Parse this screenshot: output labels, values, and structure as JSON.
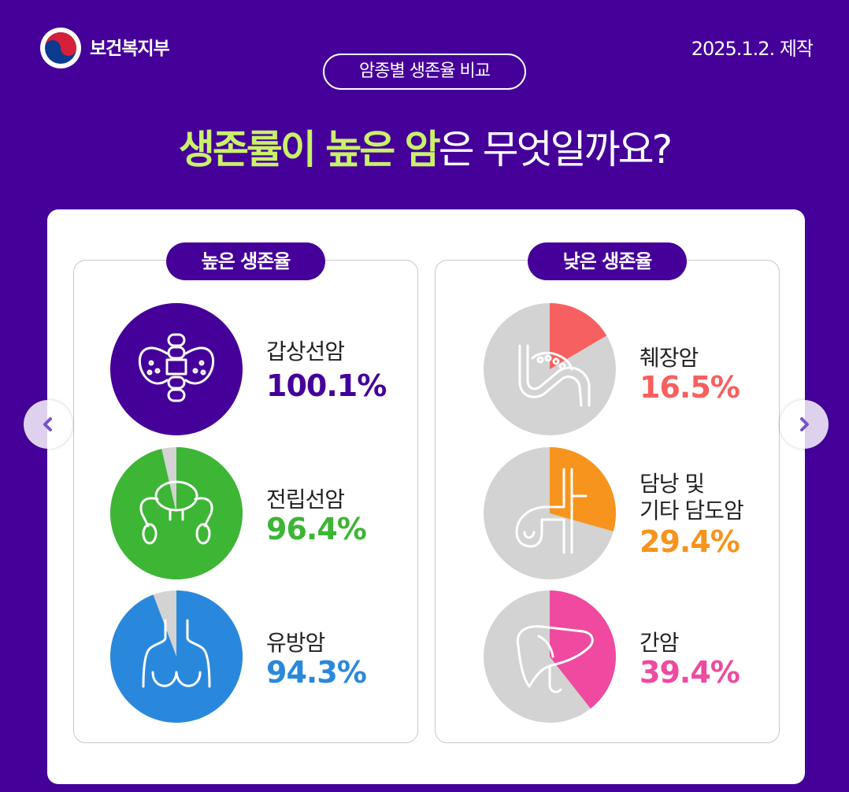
{
  "header": {
    "org_name": "보건복지부",
    "date": "2025.1.2. 제작",
    "topic": "암종별 생존율 비교",
    "headline_highlight": "생존률이 높은 암",
    "headline_rest": "은 무엇일까요?"
  },
  "panels": {
    "high_label": "높은 생존율",
    "low_label": "낮은 생존율"
  },
  "chart_data": {
    "type": "pie",
    "unit": "%",
    "high_survival": [
      {
        "name": "갑상선암",
        "value_label": "100.1%",
        "value": 100.1,
        "color": "#45009a",
        "icon": "thyroid-icon"
      },
      {
        "name": "전립선암",
        "value_label": "96.4%",
        "value": 96.4,
        "color": "#3db535",
        "icon": "prostate-icon"
      },
      {
        "name": "유방암",
        "value_label": "94.3%",
        "value": 94.3,
        "color": "#2a88dc",
        "icon": "breast-icon"
      }
    ],
    "low_survival": [
      {
        "name": "췌장암",
        "value_label": "16.5%",
        "value": 16.5,
        "color": "#f76060",
        "icon": "pancreas-icon"
      },
      {
        "name_line1": "담낭 및",
        "name_line2": "기타 담도암",
        "value_label": "29.4%",
        "value": 29.4,
        "color": "#f7941d",
        "icon": "gallbladder-icon"
      },
      {
        "name": "간암",
        "value_label": "39.4%",
        "value": 39.4,
        "color": "#ef4aa0",
        "icon": "liver-icon"
      }
    ],
    "remainder_color": "#d3d3d3"
  },
  "colors": {
    "background": "#45009a",
    "highlight": "#c9f169"
  },
  "nav": {
    "prev_icon": "chevron-left-icon",
    "next_icon": "chevron-right-icon"
  }
}
